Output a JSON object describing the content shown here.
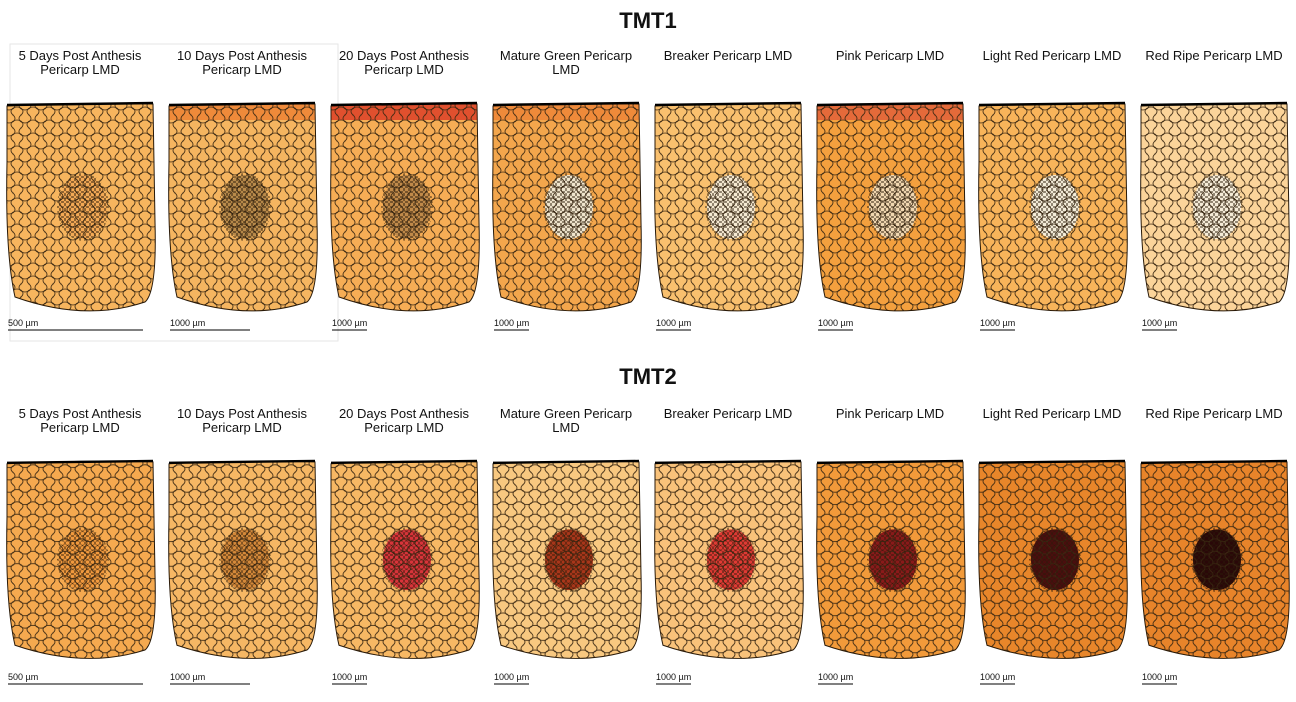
{
  "sections": [
    {
      "title": "TMT1",
      "panels": [
        {
          "label": [
            "5 Days Post Anthesis",
            "Pericarp LMD"
          ],
          "scale": "500 µm",
          "fill": "#f7b55e",
          "top": "#f7b55e",
          "center": "#f3a955"
        },
        {
          "label": [
            "10 Days Post Anthesis",
            "Pericarp LMD"
          ],
          "scale": "1000 µm",
          "fill": "#f5b560",
          "top": "#ef8a3a",
          "center": "#b88a4a"
        },
        {
          "label": [
            "20 Days Post Anthesis",
            "Pericarp LMD"
          ],
          "scale": "1000 µm",
          "fill": "#f6ad55",
          "top": "#e0502e",
          "center": "#c08a4a"
        },
        {
          "label": [
            "Mature Green Pericarp",
            "LMD"
          ],
          "scale": "1000 µm",
          "fill": "#f3a64c",
          "top": "#ef8a3a",
          "center": "#efe4cc"
        },
        {
          "label": [
            "Breaker Pericarp LMD"
          ],
          "scale": "1000 µm",
          "fill": "#f9c06e",
          "top": "#f9c06e",
          "center": "#f6ead2"
        },
        {
          "label": [
            "Pink Pericarp LMD"
          ],
          "scale": "1000 µm",
          "fill": "#f4a03e",
          "top": "#e46a3a",
          "center": "#f1d7b0"
        },
        {
          "label": [
            "Light Red Pericarp LMD"
          ],
          "scale": "1000 µm",
          "fill": "#f8b45a",
          "top": "#f8b45a",
          "center": "#f4ecd8"
        },
        {
          "label": [
            "Red Ripe Pericarp LMD"
          ],
          "scale": "1000 µm",
          "fill": "#fbd49a",
          "top": "#fbd49a",
          "center": "#f6ecd8"
        }
      ]
    },
    {
      "title": "TMT2",
      "panels": [
        {
          "label": [
            "5 Days Post Anthesis",
            "Pericarp LMD"
          ],
          "scale": "500 µm",
          "fill": "#f5a94f",
          "top": "#f5a94f",
          "center": "#f29a3e"
        },
        {
          "label": [
            "10 Days Post Anthesis",
            "Pericarp LMD"
          ],
          "scale": "1000 µm",
          "fill": "#f6b764",
          "top": "#f6b764",
          "center": "#d5893a"
        },
        {
          "label": [
            "20 Days Post Anthesis",
            "Pericarp LMD"
          ],
          "scale": "1000 µm",
          "fill": "#f7b864",
          "top": "#f7b864",
          "center": "#d8343a"
        },
        {
          "label": [
            "Mature Green Pericarp",
            "LMD"
          ],
          "scale": "1000 µm",
          "fill": "#f8c880",
          "top": "#f8c880",
          "center": "#a8361a"
        },
        {
          "label": [
            "Breaker Pericarp LMD"
          ],
          "scale": "1000 µm",
          "fill": "#f9c27a",
          "top": "#f9c27a",
          "center": "#e03a34"
        },
        {
          "label": [
            "Pink Pericarp LMD"
          ],
          "scale": "1000 µm",
          "fill": "#f29a3a",
          "top": "#f29a3a",
          "center": "#8a1a1a"
        },
        {
          "label": [
            "Light Red Pericarp LMD"
          ],
          "scale": "1000 µm",
          "fill": "#e8862a",
          "top": "#e8862a",
          "center": "#4a0e0e"
        },
        {
          "label": [
            "Red Ripe Pericarp LMD"
          ],
          "scale": "1000 µm",
          "fill": "#e8842a",
          "top": "#e8842a",
          "center": "#2a0808"
        }
      ]
    }
  ]
}
